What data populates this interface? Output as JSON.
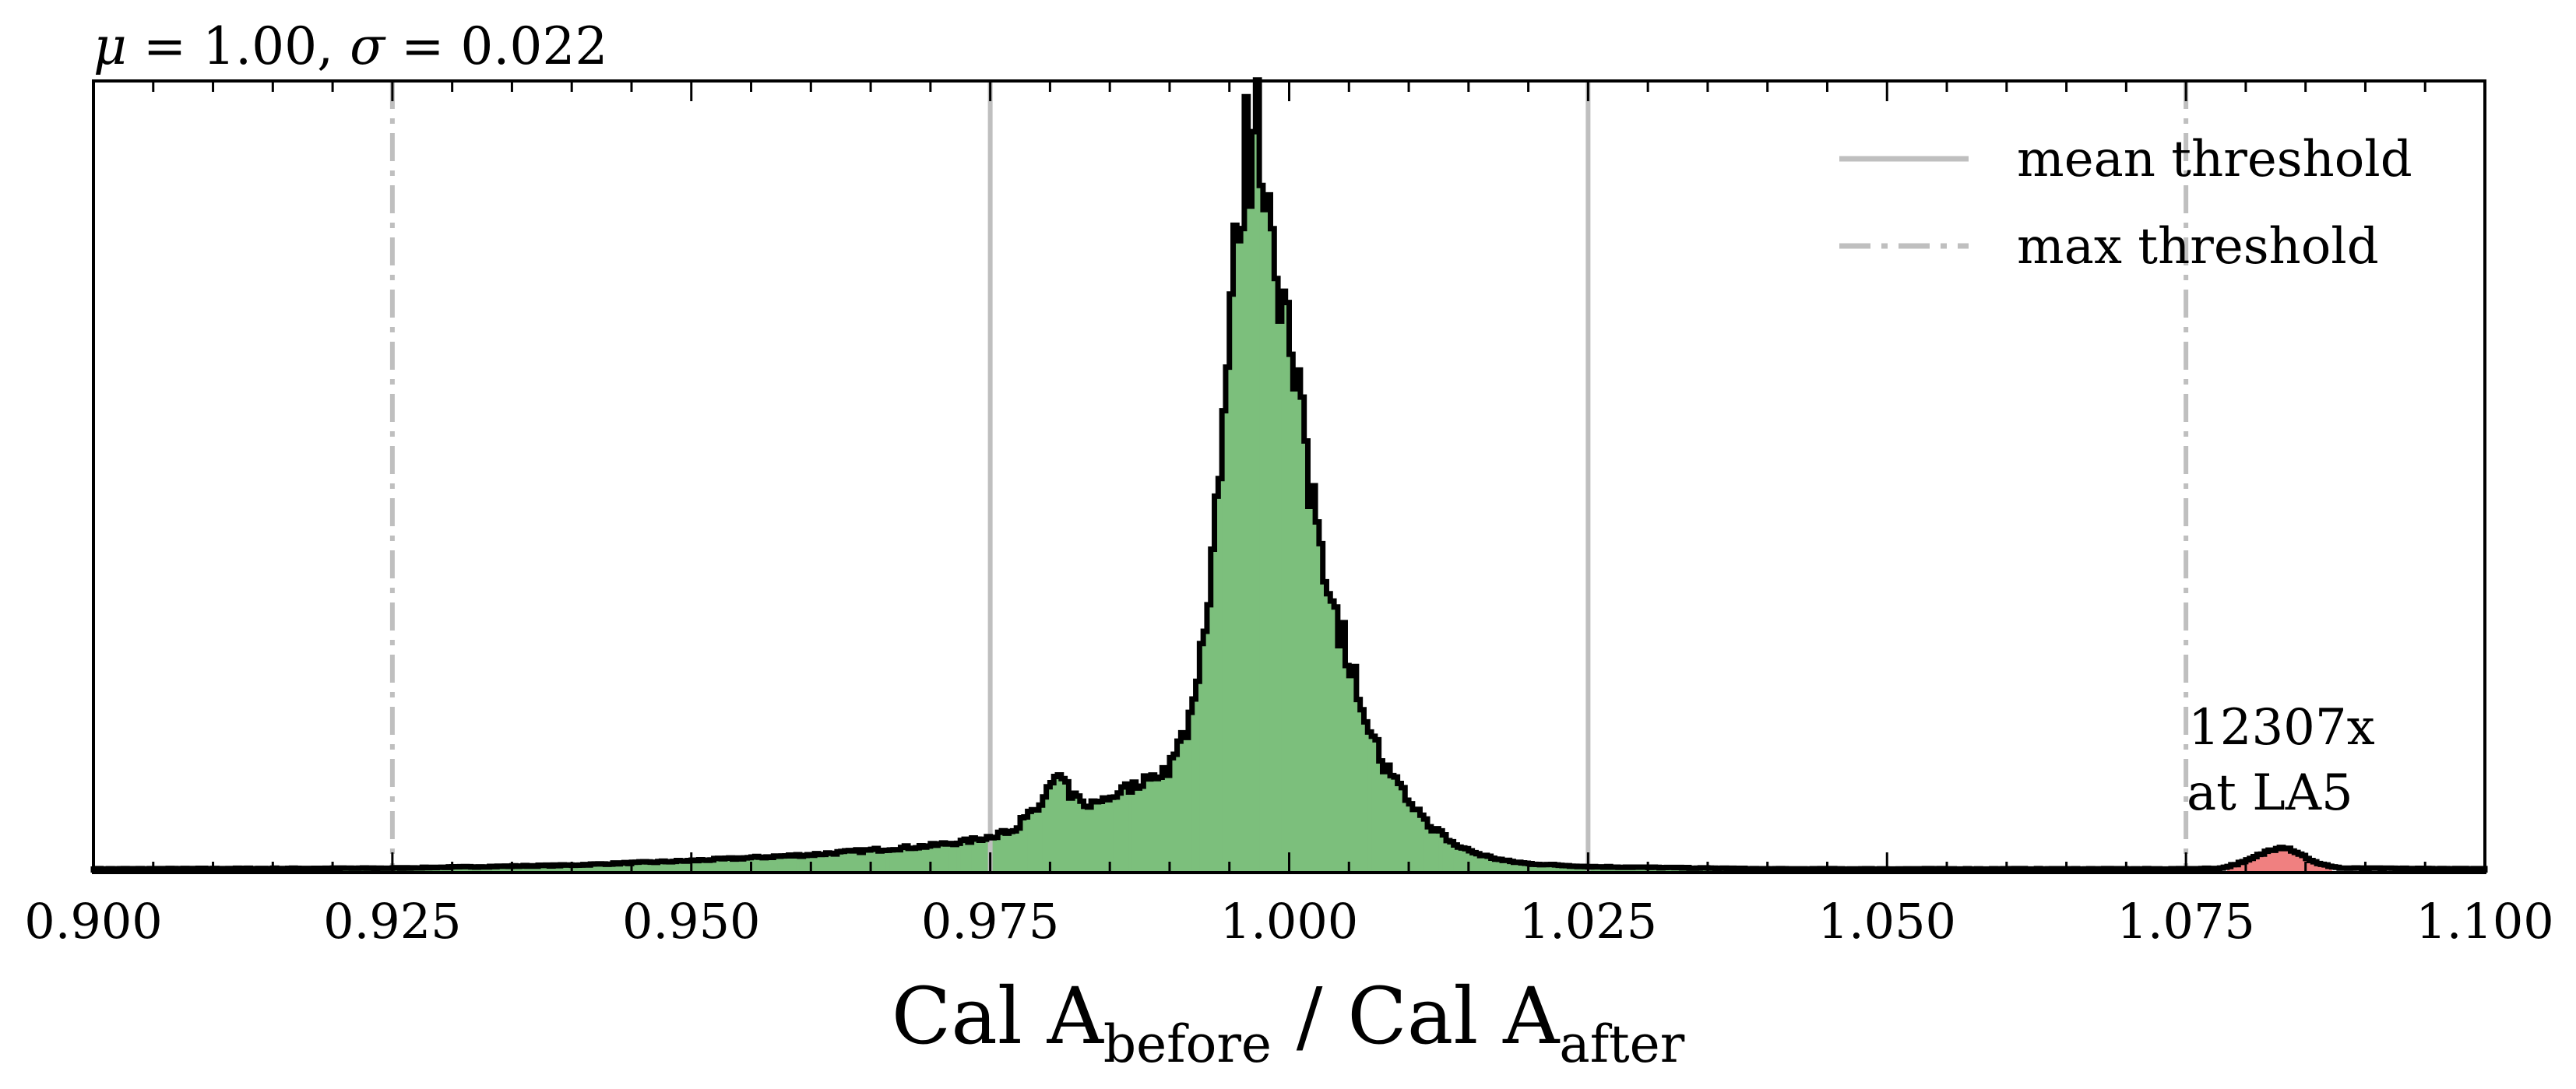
{
  "chart_data": {
    "type": "histogram",
    "title": "μ = 1.00, σ = 0.022",
    "title_parts": {
      "mu_symbol": "μ",
      "mu_value": " = 1.00, ",
      "sigma_symbol": "σ",
      "sigma_value": " = 0.022"
    },
    "xlabel_parts": {
      "part1": "Cal A",
      "sub1": "before",
      "sep": " / Cal A",
      "sub2": "after"
    },
    "xlim": [
      0.9,
      1.1
    ],
    "y_ticks_shown": false,
    "x_ticks": [
      0.9,
      0.925,
      0.95,
      0.975,
      1.0,
      1.025,
      1.05,
      1.075,
      1.1
    ],
    "x_tick_labels": [
      "0.900",
      "0.925",
      "0.950",
      "0.975",
      "1.000",
      "1.025",
      "1.050",
      "1.075",
      "1.100"
    ],
    "mean_thresholds": [
      0.975,
      1.025
    ],
    "max_thresholds": [
      0.925,
      1.075
    ],
    "legend": {
      "placement": "top-right",
      "entries": [
        {
          "label": "mean threshold",
          "style": "solid"
        },
        {
          "label": "max threshold",
          "style": "dashdot"
        }
      ]
    },
    "annotation": {
      "line1": "12307x",
      "line2": "at LA5",
      "x": 1.0775
    },
    "shape_points": [
      [
        0.9,
        0.005
      ],
      [
        0.925,
        0.006
      ],
      [
        0.94,
        0.01
      ],
      [
        0.95,
        0.016
      ],
      [
        0.955,
        0.02
      ],
      [
        0.96,
        0.024
      ],
      [
        0.965,
        0.03
      ],
      [
        0.97,
        0.036
      ],
      [
        0.973,
        0.042
      ],
      [
        0.975,
        0.048
      ],
      [
        0.977,
        0.06
      ],
      [
        0.979,
        0.085
      ],
      [
        0.98,
        0.115
      ],
      [
        0.981,
        0.125
      ],
      [
        0.982,
        0.1
      ],
      [
        0.983,
        0.09
      ],
      [
        0.984,
        0.092
      ],
      [
        0.986,
        0.11
      ],
      [
        0.988,
        0.125
      ],
      [
        0.99,
        0.14
      ],
      [
        0.991,
        0.175
      ],
      [
        0.992,
        0.23
      ],
      [
        0.993,
        0.33
      ],
      [
        0.994,
        0.5
      ],
      [
        0.995,
        0.7
      ],
      [
        0.996,
        0.92
      ],
      [
        0.997,
        1.0
      ],
      [
        0.998,
        0.95
      ],
      [
        0.999,
        0.84
      ],
      [
        1.0,
        0.7
      ],
      [
        1.001,
        0.6
      ],
      [
        1.002,
        0.5
      ],
      [
        1.003,
        0.42
      ],
      [
        1.004,
        0.35
      ],
      [
        1.005,
        0.28
      ],
      [
        1.006,
        0.23
      ],
      [
        1.007,
        0.18
      ],
      [
        1.008,
        0.14
      ],
      [
        1.01,
        0.095
      ],
      [
        1.012,
        0.06
      ],
      [
        1.014,
        0.036
      ],
      [
        1.016,
        0.024
      ],
      [
        1.018,
        0.016
      ],
      [
        1.02,
        0.012
      ],
      [
        1.025,
        0.008
      ],
      [
        1.04,
        0.005
      ],
      [
        1.075,
        0.005
      ],
      [
        1.078,
        0.006
      ],
      [
        1.08,
        0.015
      ],
      [
        1.082,
        0.03
      ],
      [
        1.083,
        0.036
      ],
      [
        1.084,
        0.03
      ],
      [
        1.086,
        0.012
      ],
      [
        1.088,
        0.006
      ],
      [
        1.1,
        0.005
      ]
    ],
    "fill_colors": {
      "inside_thresholds": "#7cbf7c",
      "outside_thresholds": "#f08080"
    },
    "line_color": "#000000",
    "threshold_color": "#bfbfbf"
  }
}
